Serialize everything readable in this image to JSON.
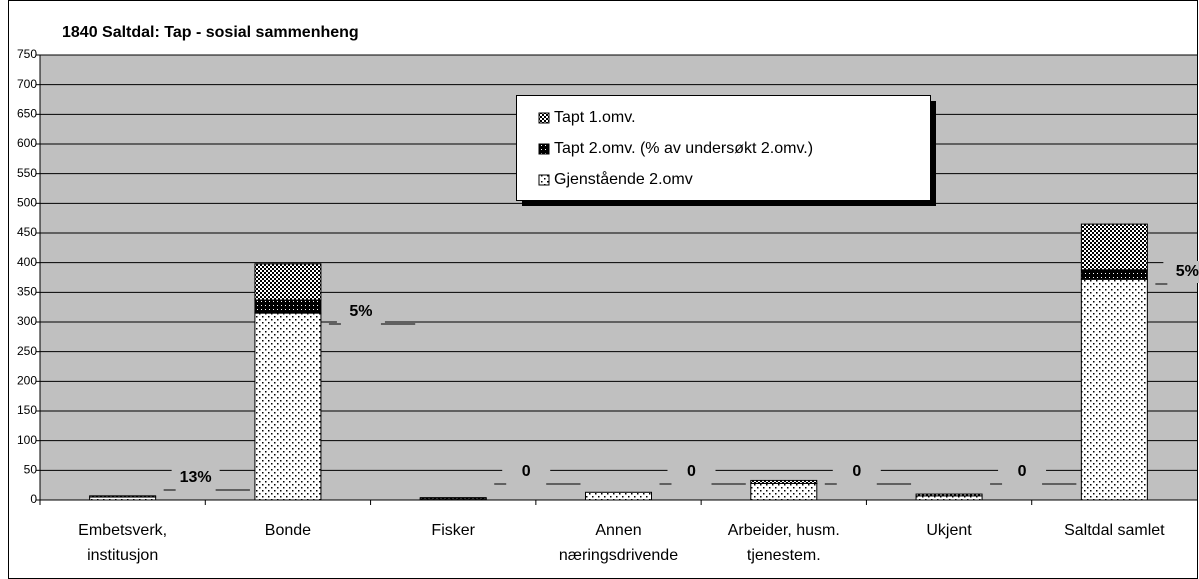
{
  "chart_data": {
    "type": "stacked_bar",
    "title": "1840 Saltdal: Tap - sosial sammenheng",
    "categories": [
      "Embetsverk, institusjon",
      "Bonde",
      "Fisker",
      "Annen næringsdrivende",
      "Arbeider, husm. tjenestem.",
      "Ukjent",
      "Saltdal samlet"
    ],
    "series": [
      {
        "name": "Gjenstående 2.omv",
        "color": "#ffffff",
        "values": [
          5,
          315,
          2,
          13,
          28,
          7,
          372
        ]
      },
      {
        "name": "Tapt 2.omv. (% av undersøkt 2.omv.)",
        "color": "#000000",
        "values": [
          0,
          22,
          0,
          0,
          0,
          0,
          16
        ]
      },
      {
        "name": "Tapt 1.omv.",
        "color": "#808080",
        "values": [
          2,
          61,
          2,
          0,
          5,
          3,
          77
        ]
      }
    ],
    "annotations": [
      "13%",
      "5%",
      "0",
      "0",
      "0",
      "0",
      "5%"
    ],
    "ylim": [
      0,
      750
    ],
    "yticks": [
      0,
      50,
      100,
      150,
      200,
      250,
      300,
      350,
      400,
      450,
      500,
      550,
      600,
      650,
      700,
      750
    ],
    "grid": true
  }
}
